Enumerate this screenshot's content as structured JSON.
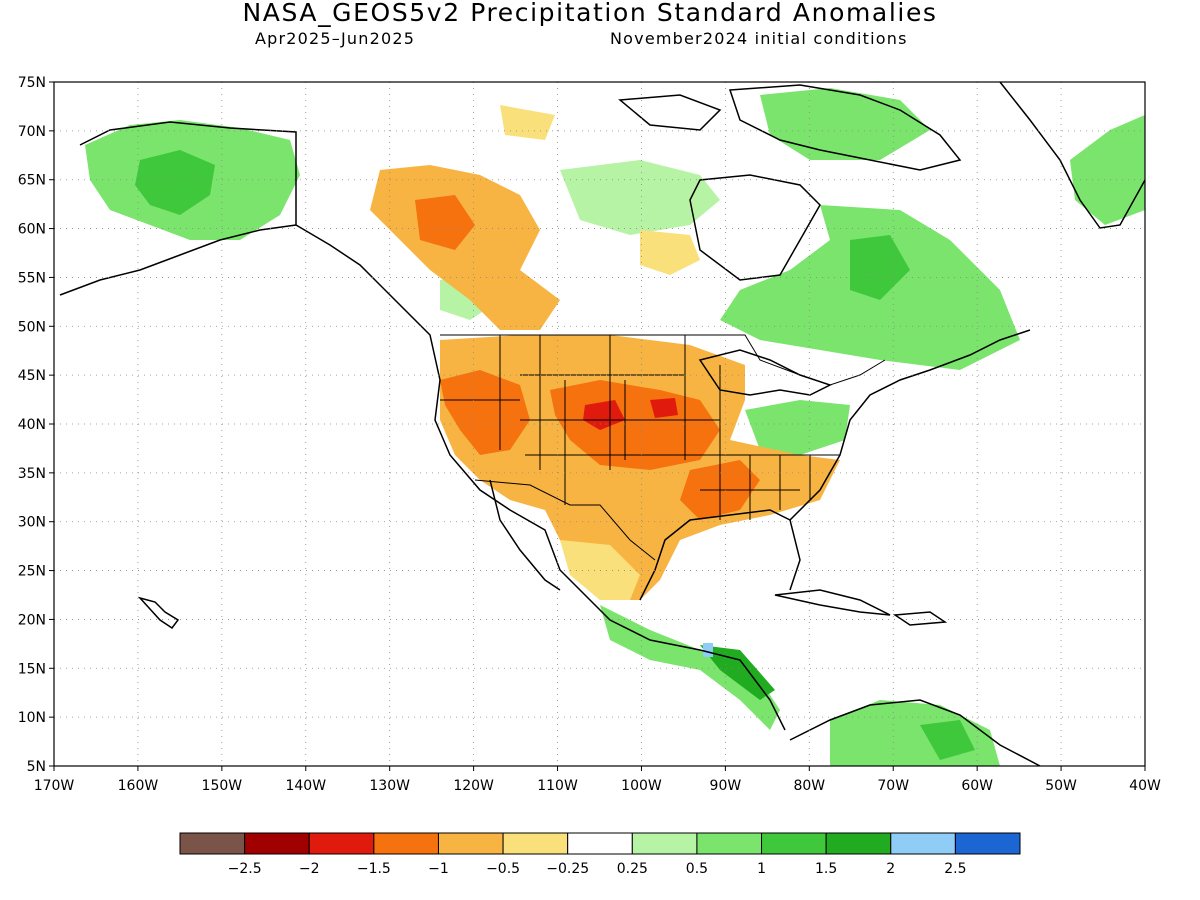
{
  "title": "NASA_GEOS5v2 Precipitation Standard Anomalies",
  "period": "Apr2025–Jun2025",
  "initial_conditions": "November2024 initial conditions",
  "chart_data": {
    "type": "heatmap",
    "title": "NASA_GEOS5v2 Precipitation Standard Anomalies",
    "lon_range": [
      -170,
      -40
    ],
    "lat_range": [
      5,
      75
    ],
    "x_ticks": [
      "170W",
      "160W",
      "150W",
      "140W",
      "130W",
      "120W",
      "110W",
      "100W",
      "90W",
      "80W",
      "70W",
      "60W",
      "50W",
      "40W"
    ],
    "y_ticks": [
      "75N",
      "70N",
      "65N",
      "60N",
      "55N",
      "50N",
      "45N",
      "40N",
      "35N",
      "30N",
      "25N",
      "20N",
      "15N",
      "10N",
      "5N"
    ],
    "grid": "dotted",
    "legend": {
      "placement": "bottom",
      "labels": [
        "−2.5",
        "−2",
        "−1.5",
        "−1",
        "−0.5",
        "−0.25",
        "0.25",
        "0.5",
        "1",
        "1.5",
        "2",
        "2.5"
      ],
      "colors": [
        "#7a5448",
        "#a00000",
        "#e01a0c",
        "#f5720e",
        "#f8b443",
        "#f9e07a",
        "#ffffff",
        "#b7f3a4",
        "#7ae46d",
        "#3fc83c",
        "#20ab20",
        "#90cdf6",
        "#1b66d3"
      ]
    }
  }
}
